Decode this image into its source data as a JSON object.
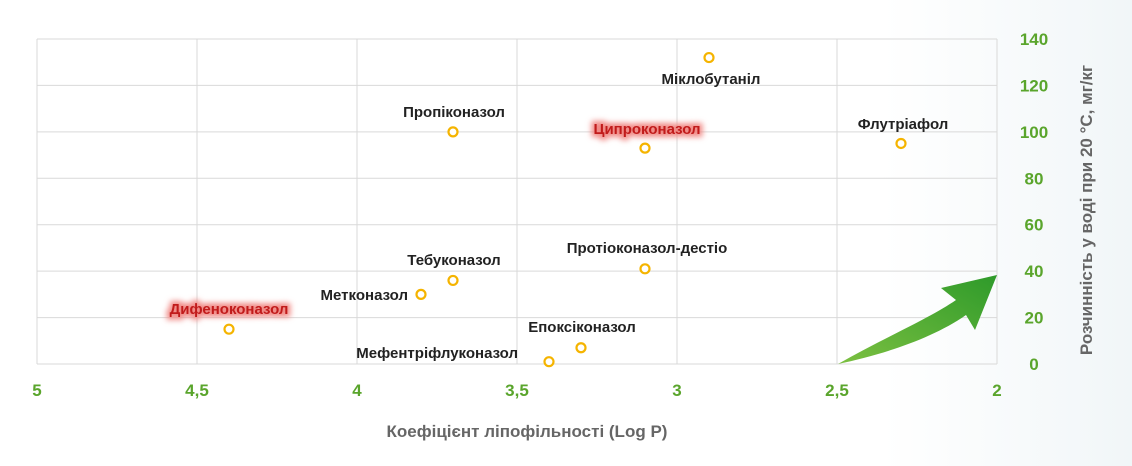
{
  "chart_data": {
    "type": "scatter",
    "xlabel": "Коефіцієнт ліпофільності (Log P)",
    "ylabel": "Розчинність у воді при 20 °C, мг/кг",
    "xlim": [
      5,
      2
    ],
    "ylim": [
      0,
      140
    ],
    "x_reversed": true,
    "x_ticks": [
      "5",
      "4,5",
      "4",
      "3,5",
      "3",
      "2,5",
      "2"
    ],
    "y_ticks": [
      "0",
      "20",
      "40",
      "60",
      "80",
      "100",
      "120",
      "140"
    ],
    "grid": true,
    "points": [
      {
        "label": "Міклобутаніл",
        "x": 2.9,
        "y": 132,
        "highlight": false
      },
      {
        "label": "Пропіконазол",
        "x": 3.7,
        "y": 100,
        "highlight": false
      },
      {
        "label": "Ципроконазол",
        "x": 3.1,
        "y": 93,
        "highlight": true
      },
      {
        "label": "Флутріафол",
        "x": 2.3,
        "y": 95,
        "highlight": false
      },
      {
        "label": "Протіоконазол-дестіо",
        "x": 3.1,
        "y": 41,
        "highlight": false
      },
      {
        "label": "Тебуконазол",
        "x": 3.7,
        "y": 36,
        "highlight": false
      },
      {
        "label": "Метконазол",
        "x": 3.8,
        "y": 30,
        "highlight": false
      },
      {
        "label": "Дифеноконазол",
        "x": 4.4,
        "y": 15,
        "highlight": true
      },
      {
        "label": "Епоксіконазол",
        "x": 3.3,
        "y": 7,
        "highlight": false
      },
      {
        "label": "Мефентріфлуконазол",
        "x": 3.4,
        "y": 1,
        "highlight": false
      }
    ],
    "colors": {
      "point": "#f5b400",
      "tick": "#5aa52c",
      "grid": "#d9d9d9",
      "arrow": "#4aa32c",
      "highlight": "#d92a2a"
    }
  }
}
